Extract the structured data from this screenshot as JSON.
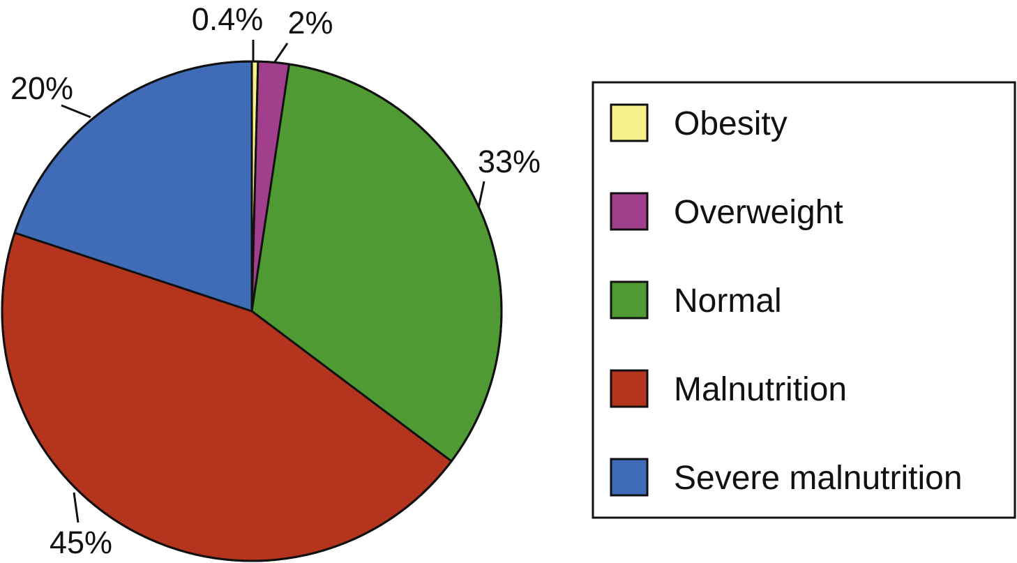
{
  "chart_data": {
    "type": "pie",
    "slices": [
      {
        "label": "Obesity",
        "value": 0.4,
        "display": "0.4%",
        "color": "#f5f08a"
      },
      {
        "label": "Overweight",
        "value": 2,
        "display": "2%",
        "color": "#a13f8c"
      },
      {
        "label": "Normal",
        "value": 33,
        "display": "33%",
        "color": "#4f9a32"
      },
      {
        "label": "Malnutrition",
        "value": 45,
        "display": "45%",
        "color": "#b5341e"
      },
      {
        "label": "Severe malnutrition",
        "value": 20,
        "display": "20%",
        "color": "#3f6bb7"
      }
    ],
    "direction": "clockwise from top",
    "legend_position": "right"
  }
}
